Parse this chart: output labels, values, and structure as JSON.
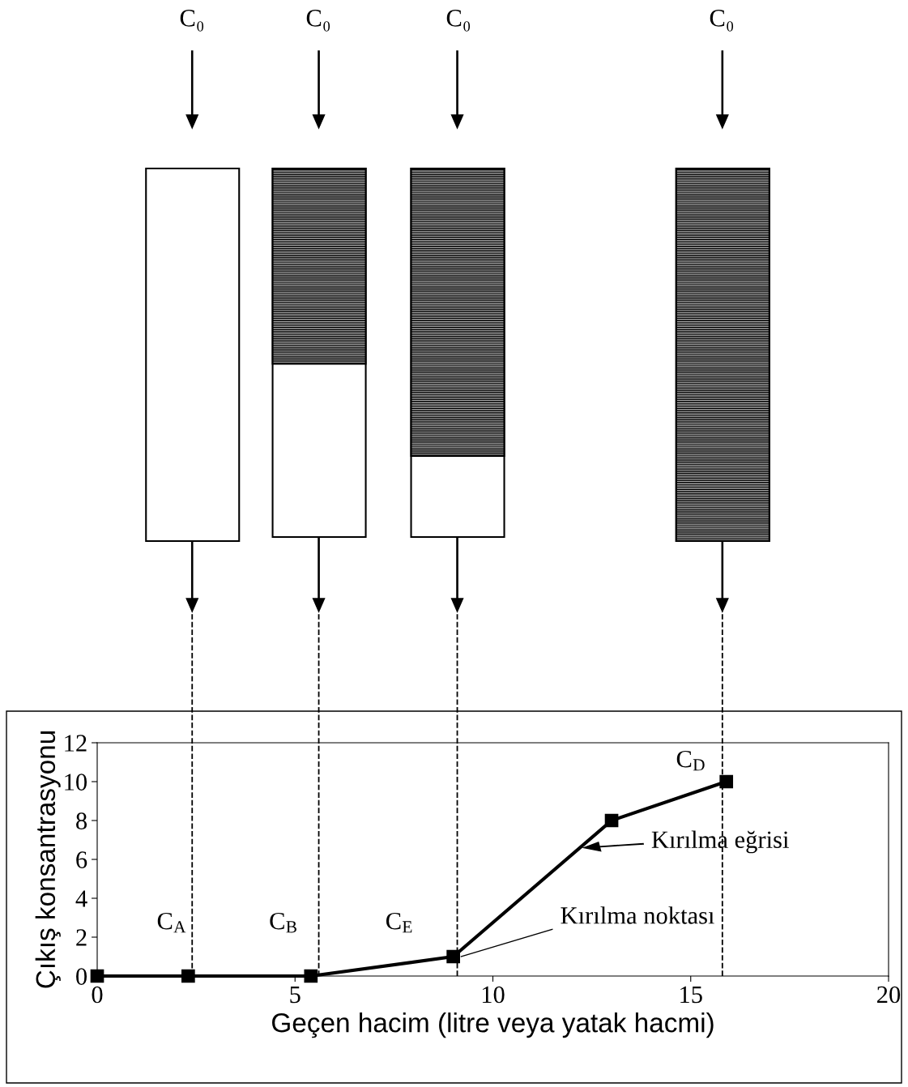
{
  "chart_data": {
    "type": "line",
    "xlabel": "Geçen hacim (litre veya yatak hacmi)",
    "ylabel": "Çıkış konsantrasyonu",
    "x": [
      0,
      2.3,
      5.4,
      9,
      13,
      15.9
    ],
    "series": [
      {
        "color": "#000000",
        "values": [
          0,
          0,
          0,
          1,
          8,
          10
        ]
      }
    ],
    "marker": "square",
    "line_style": "solid",
    "xlim": [
      0,
      20
    ],
    "xticks": [
      0,
      5,
      10,
      15,
      20
    ],
    "ylim": [
      0,
      12
    ],
    "yticks": [
      0,
      2,
      4,
      6,
      8,
      10,
      12
    ],
    "grid": false,
    "legend": false,
    "ref_lines": [
      {
        "axis": "x",
        "value": 2.4,
        "line_style": "dashed",
        "color": "#000000"
      },
      {
        "axis": "x",
        "value": 5.6,
        "line_style": "dashed",
        "color": "#000000"
      },
      {
        "axis": "x",
        "value": 9.1,
        "line_style": "dashed",
        "color": "#000000"
      },
      {
        "axis": "x",
        "value": 15.8,
        "line_style": "dashed",
        "color": "#000000"
      }
    ],
    "annotations": [
      "C₀",
      "C₀",
      "C₀",
      "C₀",
      "C$_{A}$",
      "C$_{B}$",
      "C$_{E}$",
      "C$_{D}$",
      {
        "text": "Kırılma eğrisi",
        "x": 12.3,
        "y": 6.6
      },
      {
        "text": "Kırılma noktası",
        "x": 9.2,
        "y": 1.0
      }
    ]
  }
}
